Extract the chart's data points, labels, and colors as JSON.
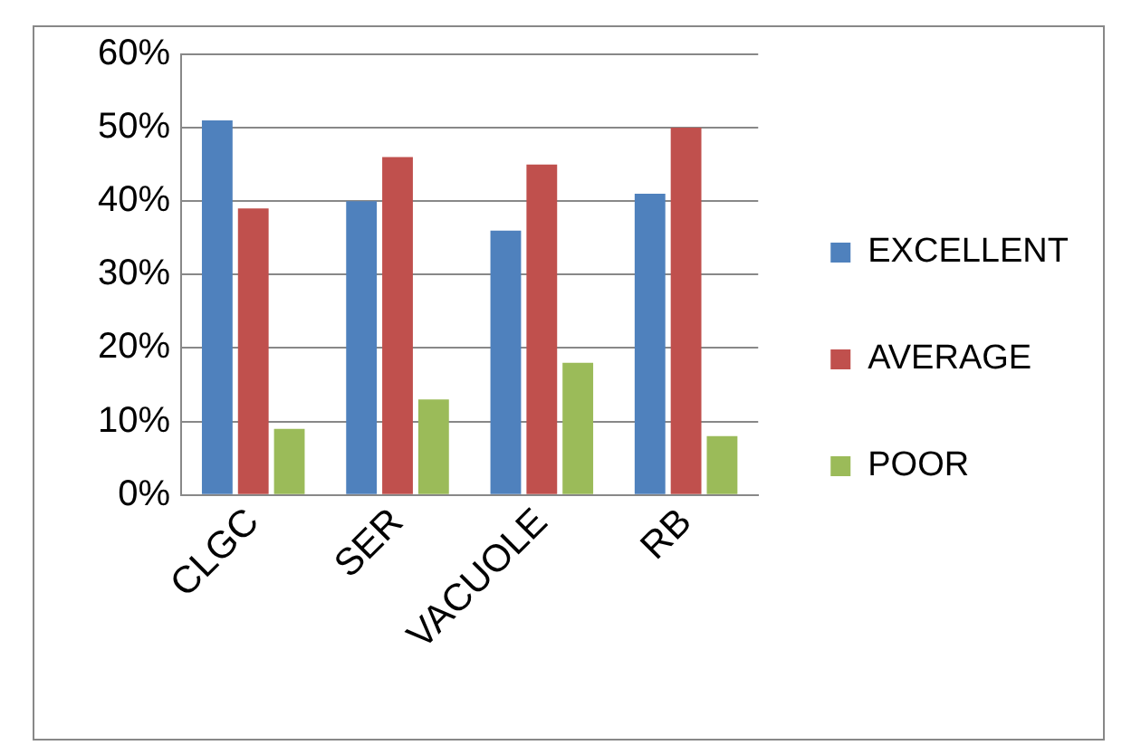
{
  "chart_data": {
    "type": "bar",
    "categories": [
      "CLGC",
      "SER",
      "VACUOLE",
      "RB"
    ],
    "series": [
      {
        "name": "EXCELLENT",
        "color": "#4f81bd",
        "values": [
          51,
          40,
          36,
          41
        ]
      },
      {
        "name": "AVERAGE",
        "color": "#c0504d",
        "values": [
          39,
          46,
          45,
          50
        ]
      },
      {
        "name": "POOR",
        "color": "#9bbb59",
        "values": [
          9,
          13,
          18,
          8
        ]
      }
    ],
    "ylim": [
      0,
      60
    ],
    "yticks": [
      {
        "value": 0,
        "label": "0%"
      },
      {
        "value": 10,
        "label": "10%"
      },
      {
        "value": 20,
        "label": "20%"
      },
      {
        "value": 30,
        "label": "30%"
      },
      {
        "value": 40,
        "label": "40%"
      },
      {
        "value": 50,
        "label": "50%"
      },
      {
        "value": 60,
        "label": "60%"
      }
    ],
    "grid": "y",
    "legend": "right"
  }
}
